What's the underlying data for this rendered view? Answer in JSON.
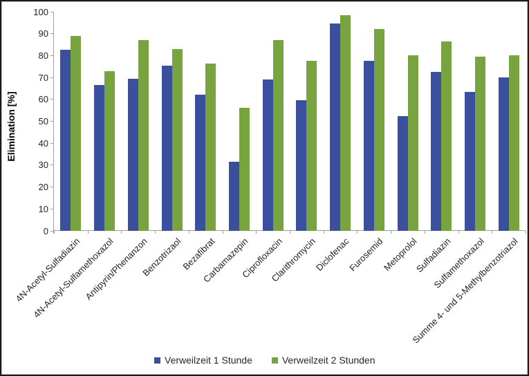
{
  "chart_data": {
    "type": "bar",
    "ylabel": "Elimination [%]",
    "xlabel": "",
    "ylim": [
      0,
      100
    ],
    "y_tick_step": 10,
    "y_ticks": [
      0,
      10,
      20,
      30,
      40,
      50,
      60,
      70,
      80,
      90,
      100
    ],
    "grid": false,
    "legend_position": "bottom",
    "categories": [
      "4N-Acetyl-Sulfadiazin",
      "4N-Acetyl-Sulfamethoxazol",
      "Antipyrin/Phenanzon",
      "Benzotrizaol",
      "Bezafibrat",
      "Carbamazepin",
      "Ciprofloxacin",
      "Clarithromycin",
      "Diclofenac",
      "Furosemid",
      "Metoprolol",
      "Sulfadiazin",
      "Sulfamethoxazol",
      "Summe 4- und 5-Methylbenzotriazol"
    ],
    "series": [
      {
        "name": "Verweilzeit 1 Stunde",
        "color": "#3A4F9D",
        "values": [
          82.5,
          66.5,
          69.5,
          75.5,
          62,
          31.5,
          69,
          59.5,
          94.5,
          77.5,
          52.5,
          72.5,
          63.5,
          70
        ]
      },
      {
        "name": "Verweilzeit 2 Stunden",
        "color": "#77A43E",
        "values": [
          89,
          73,
          87,
          83,
          76.5,
          56,
          87,
          77.5,
          98.5,
          92,
          80,
          86.5,
          79.5,
          80
        ]
      }
    ]
  },
  "colors": {
    "axis": "#9e9e9e",
    "tick_text": "#1f1f1f",
    "frame": "#1a1a1a"
  }
}
